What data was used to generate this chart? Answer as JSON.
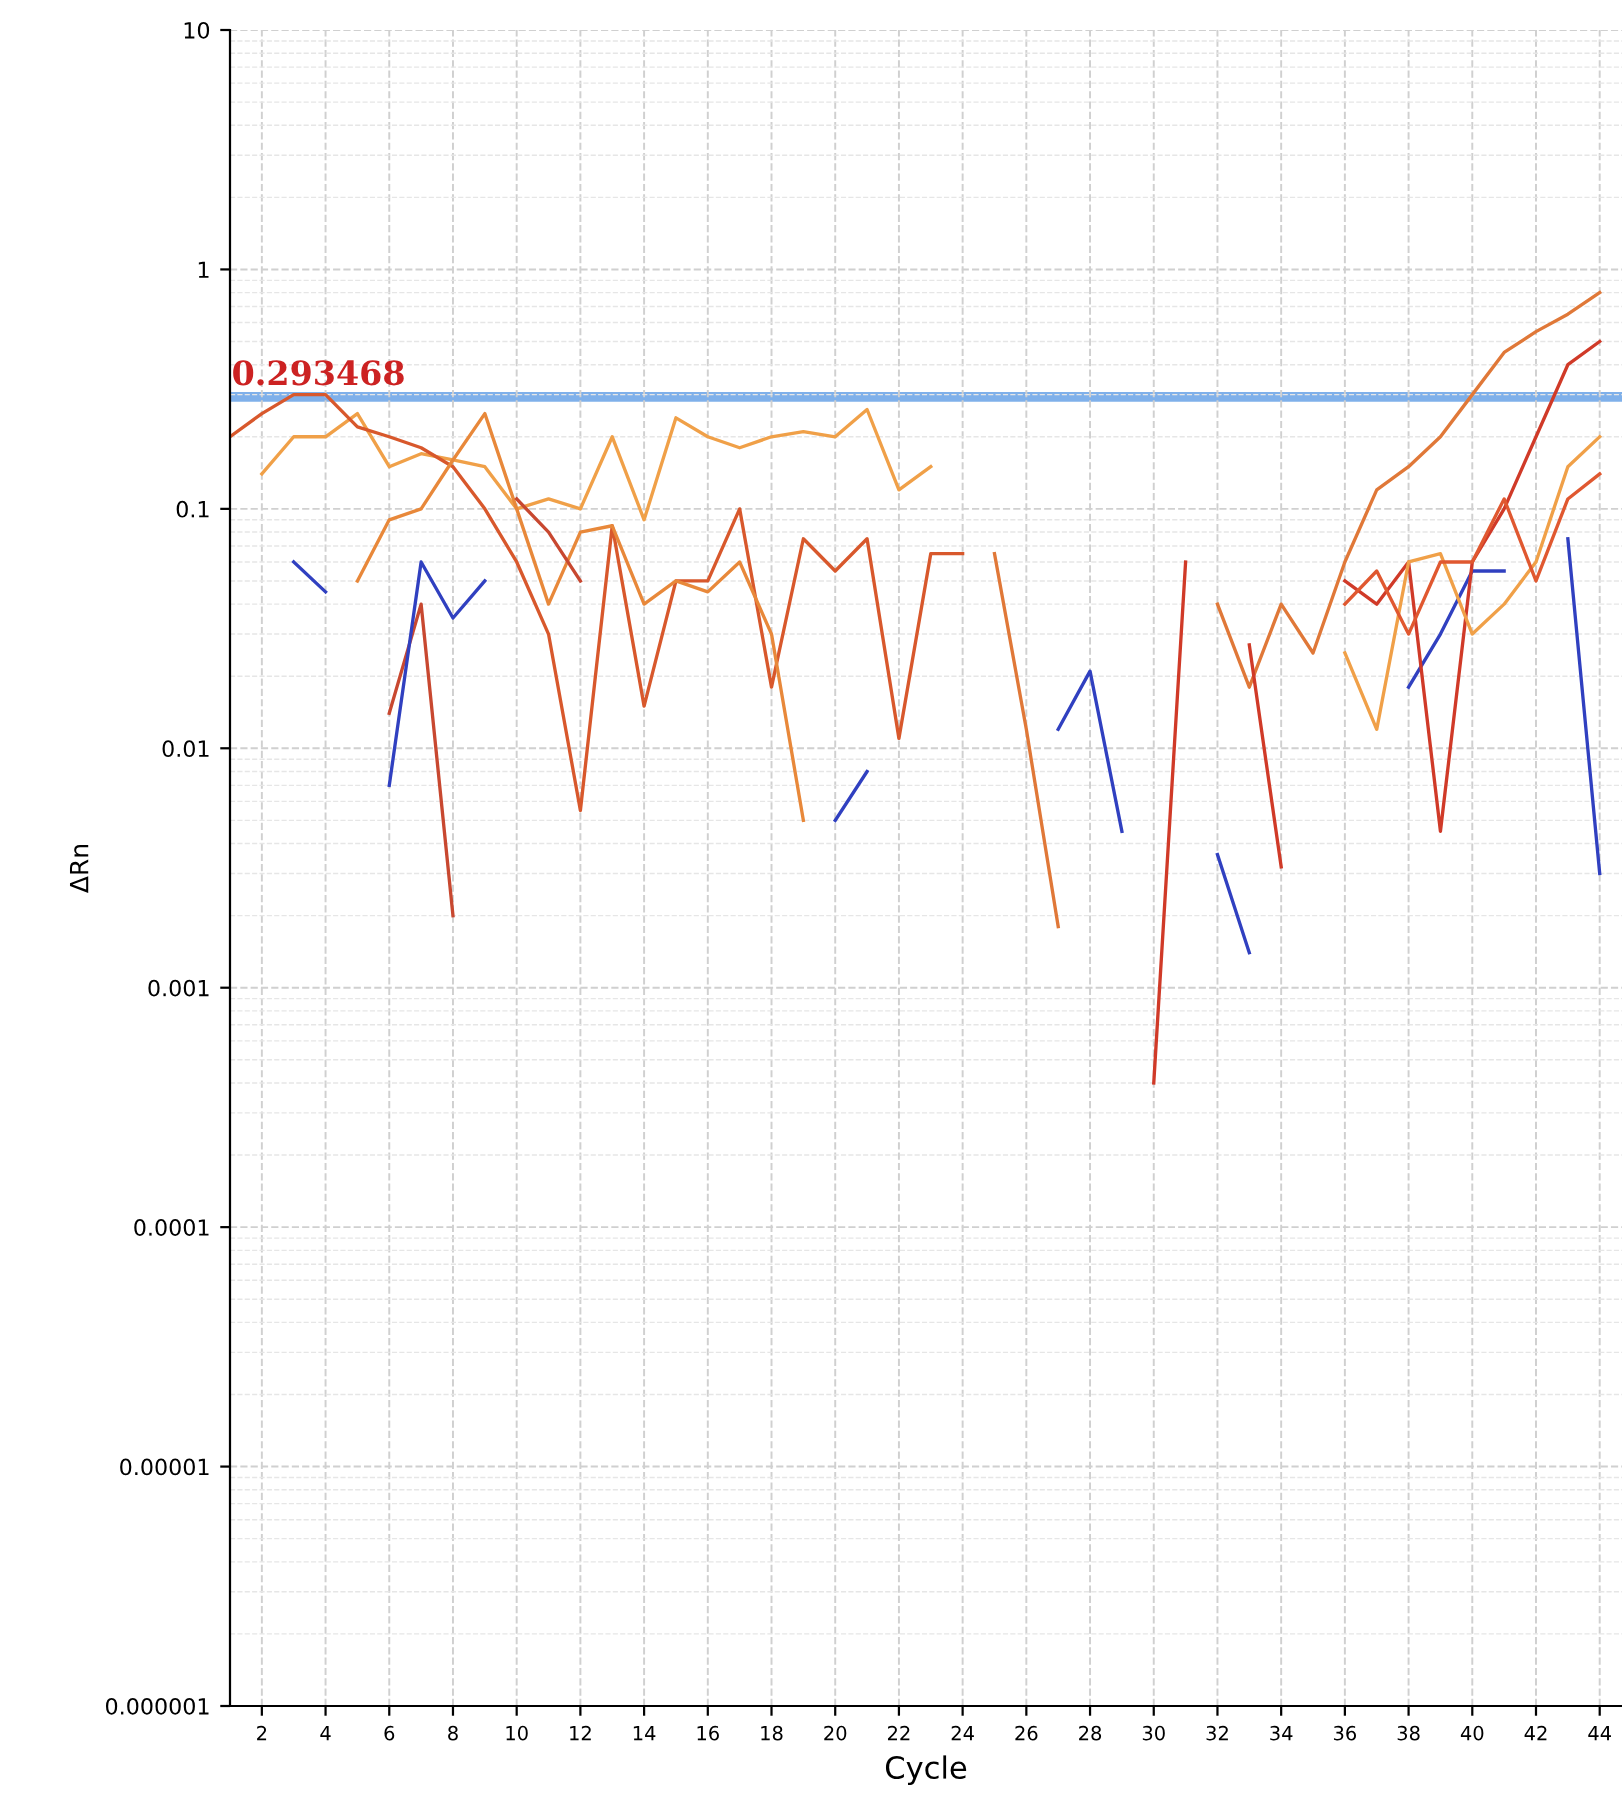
{
  "chart_data": {
    "type": "line",
    "xlabel": "Cycle",
    "ylabel": "ΔRn",
    "log": "y",
    "grid": true,
    "marker": "none",
    "line_style": "solid",
    "xlim": [
      1,
      44.7
    ],
    "xticks": [
      2,
      4,
      6,
      8,
      10,
      12,
      14,
      16,
      18,
      20,
      22,
      24,
      26,
      28,
      30,
      32,
      34,
      36,
      38,
      40,
      42,
      44
    ],
    "ylim": [
      1e-06,
      10
    ],
    "yticks": [
      {
        "value": 1e-06,
        "label": "0.000001"
      },
      {
        "value": 1e-05,
        "label": "0.00001"
      },
      {
        "value": 0.0001,
        "label": "0.0001"
      },
      {
        "value": 0.001,
        "label": "0.001"
      },
      {
        "value": 0.01,
        "label": "0.01"
      },
      {
        "value": 0.1,
        "label": "0.1"
      },
      {
        "value": 1,
        "label": "1"
      },
      {
        "value": 10,
        "label": "10"
      }
    ],
    "ref_lines": [
      {
        "axis": "y",
        "value": 0.293468,
        "label": "0.293468",
        "color": "#7fb0ea"
      }
    ],
    "series": [
      {
        "color": "#f0a048",
        "x": [
          2,
          3,
          4,
          5,
          6,
          7,
          8,
          9,
          10,
          11,
          12,
          13,
          14,
          15,
          16,
          17,
          18,
          19,
          20,
          21,
          22,
          23
        ],
        "values": [
          0.14,
          0.2,
          0.2,
          0.25,
          0.15,
          0.17,
          0.16,
          0.15,
          0.1,
          0.11,
          0.1,
          0.2,
          0.09,
          0.24,
          0.2,
          0.18,
          0.2,
          0.21,
          0.2,
          0.26,
          0.12,
          0.15
        ]
      },
      {
        "color": "#d8582c",
        "x": [
          1,
          2,
          3,
          4,
          5,
          6,
          7,
          8,
          9,
          10,
          11,
          12,
          13,
          14,
          15,
          16,
          17,
          18,
          19,
          20,
          21,
          22,
          23,
          24
        ],
        "values": [
          0.2,
          0.25,
          0.3,
          0.3,
          0.22,
          0.2,
          0.18,
          0.15,
          0.1,
          0.06,
          0.03,
          0.0055,
          0.085,
          0.015,
          0.05,
          0.05,
          0.1,
          0.018,
          0.075,
          0.055,
          0.075,
          0.011,
          0.065,
          0.065
        ]
      },
      {
        "color": "#e8883a",
        "x": [
          5,
          6,
          7,
          8,
          9,
          10,
          11,
          12,
          13,
          14,
          15,
          16,
          17,
          18,
          19
        ],
        "values": [
          0.05,
          0.09,
          0.1,
          0.16,
          0.25,
          0.1,
          0.04,
          0.08,
          0.085,
          0.04,
          0.05,
          0.045,
          0.06,
          0.03,
          0.005
        ]
      },
      {
        "color": "#c84830",
        "x": [
          6,
          7,
          8,
          9,
          10,
          11,
          12
        ],
        "values": [
          0.014,
          0.04,
          0.002,
          null,
          0.11,
          0.08,
          0.05
        ]
      },
      {
        "color": "#3040c0",
        "x": [
          3,
          4,
          5,
          6,
          7,
          8,
          9,
          10,
          20,
          21,
          22,
          27,
          28,
          29,
          30,
          32,
          33,
          34,
          38,
          39,
          40,
          41,
          42,
          43,
          44
        ],
        "values": [
          0.06,
          0.045,
          null,
          0.007,
          0.06,
          0.035,
          0.05,
          null,
          0.005,
          0.008,
          null,
          0.012,
          0.021,
          0.0045,
          null,
          0.0036,
          0.0014,
          null,
          0.018,
          0.03,
          0.055,
          0.055,
          null,
          0.075,
          0.003
        ]
      },
      {
        "color": "#e07838",
        "x": [
          25,
          26,
          27,
          28,
          32,
          33,
          34,
          35,
          36,
          37,
          38,
          39,
          40,
          41,
          42,
          43,
          44
        ],
        "values": [
          0.065,
          0.012,
          0.0018,
          null,
          0.04,
          0.018,
          0.04,
          0.025,
          0.06,
          0.12,
          0.15,
          0.2,
          0.3,
          0.45,
          0.55,
          0.65,
          0.8
        ]
      },
      {
        "color": "#d03a28",
        "x": [
          30,
          31,
          32,
          33,
          34,
          35,
          36,
          37,
          38,
          39,
          40,
          41,
          42,
          43,
          44
        ],
        "values": [
          0.0004,
          0.06,
          null,
          0.027,
          0.0032,
          null,
          0.05,
          0.04,
          0.06,
          0.0045,
          0.06,
          0.1,
          0.2,
          0.4,
          0.5
        ]
      },
      {
        "color": "#f0a048",
        "x": [
          36,
          37,
          38,
          39,
          40,
          41,
          42,
          43,
          44
        ],
        "values": [
          0.025,
          0.012,
          0.06,
          0.065,
          0.03,
          0.04,
          0.06,
          0.15,
          0.2
        ]
      },
      {
        "color": "#e05830",
        "x": [
          36,
          37,
          38,
          39,
          40,
          41,
          42,
          43,
          44
        ],
        "values": [
          0.04,
          0.055,
          0.03,
          0.06,
          0.06,
          0.11,
          0.05,
          0.11,
          0.14
        ]
      }
    ]
  }
}
